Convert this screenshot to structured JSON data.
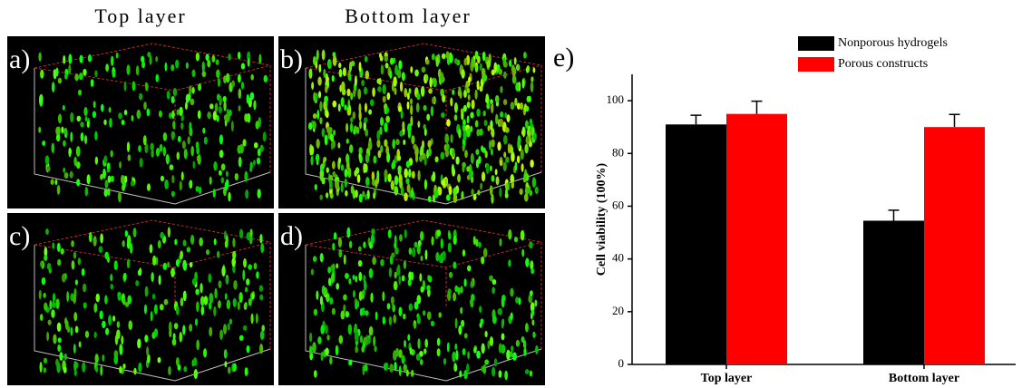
{
  "column_headers": [
    "Top layer",
    "Bottom layer"
  ],
  "panel_labels": [
    "a)",
    "b)",
    "c)",
    "d)"
  ],
  "chart_data": {
    "type": "bar",
    "panel_label": "e)",
    "y_label": "Cell viability (100%)",
    "categories": [
      "Top layer",
      "Bottom layer"
    ],
    "series": [
      {
        "name": "Nonporous hydrogels",
        "color": "#000000",
        "values": [
          91,
          54.5
        ],
        "errors": [
          3.5,
          4
        ]
      },
      {
        "name": "Porous constructs",
        "color": "#ff0000",
        "values": [
          95,
          90
        ],
        "errors": [
          4.8,
          4.8
        ]
      }
    ],
    "ylim": [
      0,
      110
    ],
    "yticks": [
      0,
      20,
      40,
      60,
      80,
      100
    ],
    "legend": "upper right"
  }
}
